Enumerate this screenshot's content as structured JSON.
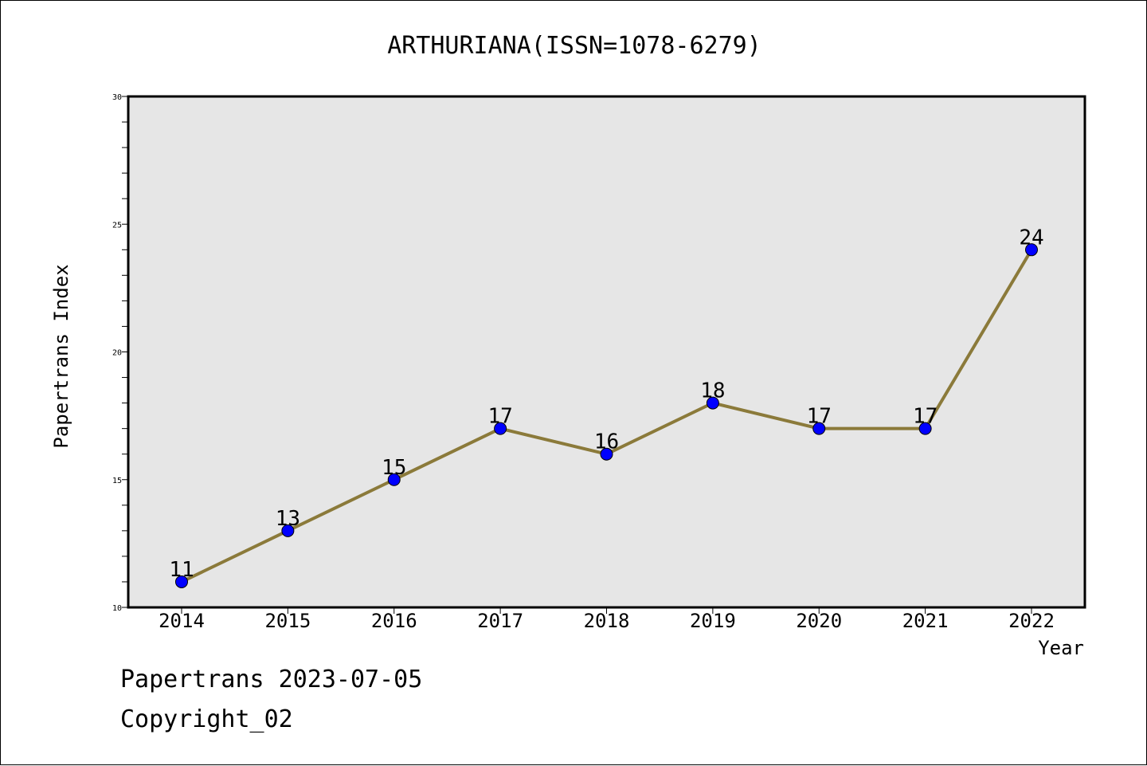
{
  "chart_data": {
    "type": "line",
    "title": "ARTHURIANA(ISSN=1078-6279)",
    "xlabel": "Year",
    "ylabel": "Papertrans Index",
    "categories": [
      "2014",
      "2015",
      "2016",
      "2017",
      "2018",
      "2019",
      "2020",
      "2021",
      "2022"
    ],
    "series": [
      {
        "values": [
          11,
          13,
          15,
          17,
          16,
          18,
          17,
          17,
          24
        ]
      }
    ],
    "ylim": [
      10,
      30
    ],
    "y_ticks": [
      "10",
      "15",
      "20",
      "25",
      "30"
    ],
    "grid": false,
    "colors": {
      "line": "#8b7a3a",
      "marker": "#0000ff",
      "plot_background": "#e6e6e6"
    }
  },
  "footer": {
    "line1": "Papertrans 2023-07-05",
    "line2": "Copyright_02"
  }
}
